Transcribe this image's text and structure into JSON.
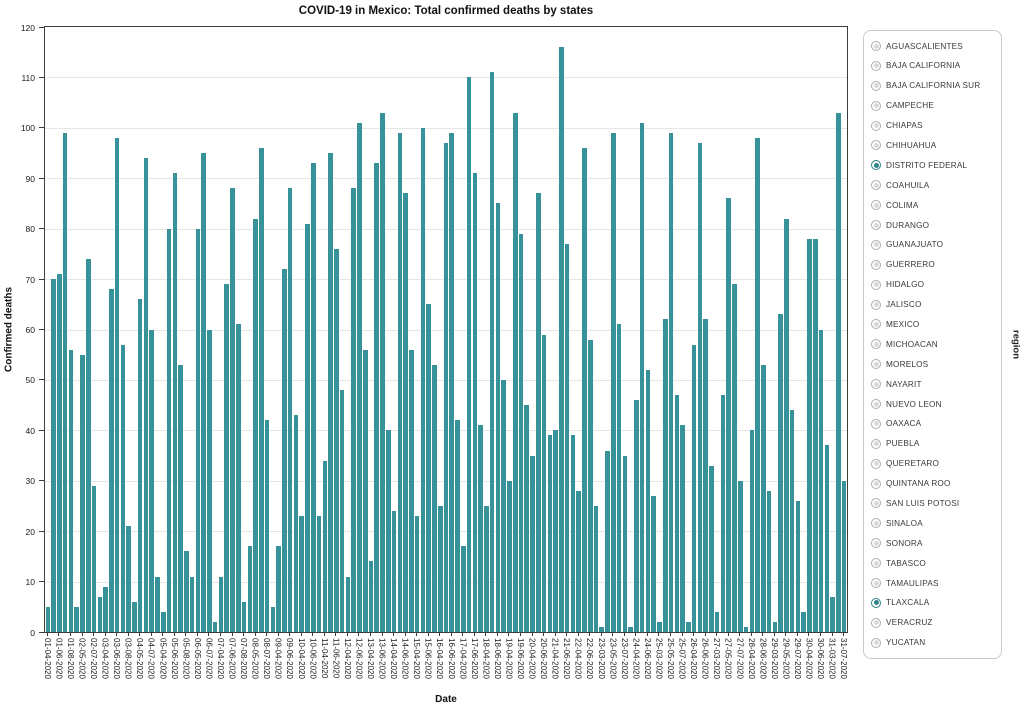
{
  "chart_data": {
    "type": "bar",
    "title": "COVID-19 in Mexico: Total confirmed deaths by states",
    "xlabel": "Date",
    "ylabel": "Confirmed deaths",
    "ylim": [
      0,
      120
    ],
    "yticks": [
      0,
      10,
      20,
      30,
      40,
      50,
      60,
      70,
      80,
      90,
      100,
      110,
      120
    ],
    "grid": "horizontal",
    "bar_color": "#38929a",
    "tick_label_every": 2,
    "categories": [
      "01-04-2020",
      "01-05-2020",
      "01-06-2020",
      "01-07-2020",
      "01-08-2020",
      "02-04-2020",
      "02-05-2020",
      "02-06-2020",
      "02-07-2020",
      "02-08-2020",
      "03-04-2020",
      "03-05-2020",
      "03-06-2020",
      "03-07-2020",
      "03-08-2020",
      "04-04-2020",
      "04-05-2020",
      "04-06-2020",
      "04-07-2020",
      "04-08-2020",
      "05-04-2020",
      "05-05-2020",
      "05-06-2020",
      "05-07-2020",
      "05-08-2020",
      "06-04-2020",
      "06-05-2020",
      "06-06-2020",
      "06-07-2020",
      "06-08-2020",
      "07-04-2020",
      "07-05-2020",
      "07-06-2020",
      "07-07-2020",
      "07-08-2020",
      "08-04-2020",
      "08-05-2020",
      "08-06-2020",
      "08-07-2020",
      "08-08-2020",
      "09-04-2020",
      "09-05-2020",
      "09-06-2020",
      "09-07-2020",
      "10-04-2020",
      "10-05-2020",
      "10-06-2020",
      "10-07-2020",
      "11-04-2020",
      "11-05-2020",
      "11-06-2020",
      "11-07-2020",
      "12-04-2020",
      "12-05-2020",
      "12-06-2020",
      "12-07-2020",
      "13-04-2020",
      "13-05-2020",
      "13-06-2020",
      "13-07-2020",
      "14-04-2020",
      "14-05-2020",
      "14-06-2020",
      "14-07-2020",
      "15-04-2020",
      "15-05-2020",
      "15-06-2020",
      "15-07-2020",
      "16-04-2020",
      "16-05-2020",
      "16-06-2020",
      "16-07-2020",
      "17-04-2020",
      "17-05-2020",
      "17-06-2020",
      "17-07-2020",
      "18-04-2020",
      "18-05-2020",
      "18-06-2020",
      "18-07-2020",
      "19-04-2020",
      "19-05-2020",
      "19-06-2020",
      "19-07-2020",
      "20-04-2020",
      "20-05-2020",
      "20-06-2020",
      "20-07-2020",
      "21-04-2020",
      "21-05-2020",
      "21-06-2020",
      "21-07-2020",
      "22-04-2020",
      "22-05-2020",
      "22-06-2020",
      "22-07-2020",
      "23-03-2020",
      "23-04-2020",
      "23-05-2020",
      "23-06-2020",
      "23-07-2020",
      "24-03-2020",
      "24-04-2020",
      "24-05-2020",
      "24-06-2020",
      "24-07-2020",
      "25-03-2020",
      "25-04-2020",
      "25-05-2020",
      "25-06-2020",
      "25-07-2020",
      "26-03-2020",
      "26-04-2020",
      "26-05-2020",
      "26-06-2020",
      "26-07-2020",
      "27-03-2020",
      "27-04-2020",
      "27-05-2020",
      "27-06-2020",
      "27-07-2020",
      "28-03-2020",
      "28-04-2020",
      "28-05-2020",
      "28-06-2020",
      "28-07-2020",
      "29-03-2020",
      "29-04-2020",
      "29-05-2020",
      "29-06-2020",
      "29-07-2020",
      "30-03-2020",
      "30-04-2020",
      "30-05-2020",
      "30-06-2020",
      "30-07-2020",
      "31-03-2020",
      "31-05-2020",
      "31-07-2020"
    ],
    "values": [
      5,
      70,
      71,
      99,
      56,
      5,
      55,
      74,
      29,
      7,
      9,
      68,
      98,
      57,
      21,
      6,
      66,
      94,
      60,
      11,
      4,
      80,
      91,
      53,
      16,
      11,
      80,
      95,
      60,
      2,
      11,
      69,
      88,
      61,
      6,
      17,
      82,
      96,
      42,
      5,
      17,
      72,
      88,
      43,
      23,
      81,
      93,
      23,
      34,
      95,
      76,
      48,
      11,
      88,
      101,
      56,
      14,
      93,
      103,
      40,
      24,
      99,
      87,
      56,
      23,
      100,
      65,
      53,
      25,
      97,
      99,
      42,
      17,
      110,
      91,
      41,
      25,
      111,
      85,
      50,
      30,
      103,
      79,
      45,
      35,
      87,
      59,
      39,
      40,
      116,
      77,
      39,
      28,
      96,
      58,
      25,
      1,
      36,
      99,
      61,
      35,
      1,
      46,
      101,
      52,
      27,
      2,
      62,
      99,
      47,
      41,
      2,
      57,
      97,
      62,
      33,
      4,
      47,
      86,
      69,
      30,
      1,
      40,
      98,
      53,
      28,
      2,
      63,
      82,
      44,
      26,
      4,
      78,
      78,
      60,
      37,
      7,
      103,
      30
    ]
  },
  "legend": {
    "title": "region",
    "items": [
      "AGUASCALIENTES",
      "BAJA CALIFORNIA",
      "BAJA CALIFORNIA SUR",
      "CAMPECHE",
      "CHIAPAS",
      "CHIHUAHUA",
      "DISTRITO FEDERAL",
      "COAHUILA",
      "COLIMA",
      "DURANGO",
      "GUANAJUATO",
      "GUERRERO",
      "HIDALGO",
      "JALISCO",
      "MEXICO",
      "MICHOACAN",
      "MORELOS",
      "NAYARIT",
      "NUEVO LEON",
      "OAXACA",
      "PUEBLA",
      "QUERETARO",
      "QUINTANA ROO",
      "SAN LUIS POTOSI",
      "SINALOA",
      "SONORA",
      "TABASCO",
      "TAMAULIPAS",
      "TLAXCALA",
      "VERACRUZ",
      "YUCATAN"
    ],
    "selected": [
      "DISTRITO FEDERAL",
      "TLAXCALA"
    ],
    "selected_color": "#2e8289"
  }
}
